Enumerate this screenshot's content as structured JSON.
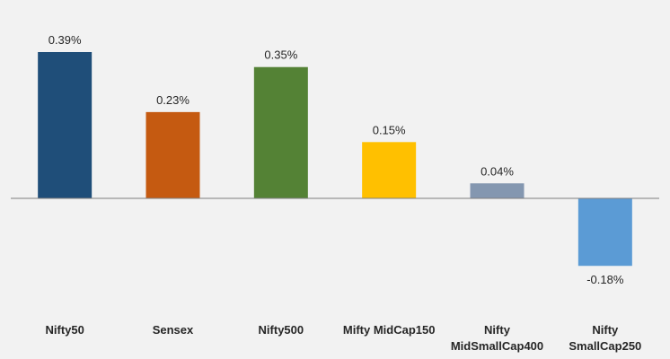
{
  "chart_data": {
    "type": "bar",
    "categories": [
      [
        "Nifty50"
      ],
      [
        "Sensex"
      ],
      [
        "Nifty500"
      ],
      [
        "Mifty MidCap150"
      ],
      [
        "Nifty",
        "MidSmallCap400"
      ],
      [
        "Nifty",
        "SmallCap250"
      ]
    ],
    "values": [
      0.39,
      0.23,
      0.35,
      0.15,
      0.04,
      -0.18
    ],
    "value_labels": [
      "0.39%",
      "0.23%",
      "0.35%",
      "0.15%",
      "0.04%",
      "-0.18%"
    ],
    "colors": [
      "#1f4e79",
      "#c55a11",
      "#548235",
      "#ffc000",
      "#8497b0",
      "#5b9bd5"
    ],
    "title": "",
    "xlabel": "",
    "ylabel": "",
    "unit": "%",
    "grid": false,
    "legend": "none",
    "ylim": [
      -0.18,
      0.39
    ]
  }
}
